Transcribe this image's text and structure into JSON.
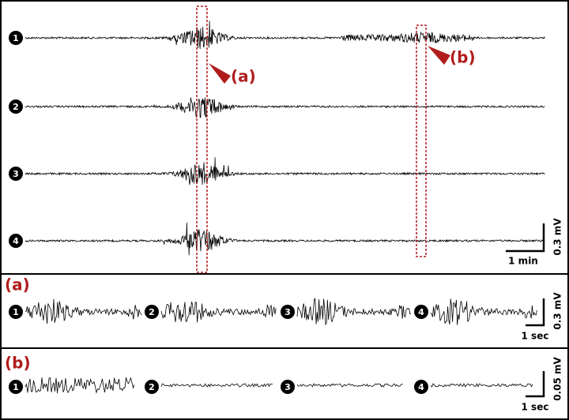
{
  "main_panel": {
    "channels": [
      "1",
      "2",
      "3",
      "4"
    ],
    "callouts": [
      "(a)",
      "(b)"
    ],
    "scale_bar": {
      "vertical": "0.3 mV",
      "horizontal": "1 min"
    }
  },
  "panel_a": {
    "label": "(a)",
    "channels": [
      "1",
      "2",
      "3",
      "4"
    ],
    "scale_bar": {
      "vertical": "0.3 mV",
      "horizontal": "1 sec"
    }
  },
  "panel_b": {
    "label": "(b)",
    "channels": [
      "1",
      "2",
      "3",
      "4"
    ],
    "scale_bar": {
      "vertical": "0.05 mV",
      "horizontal": "1 sec"
    }
  }
}
